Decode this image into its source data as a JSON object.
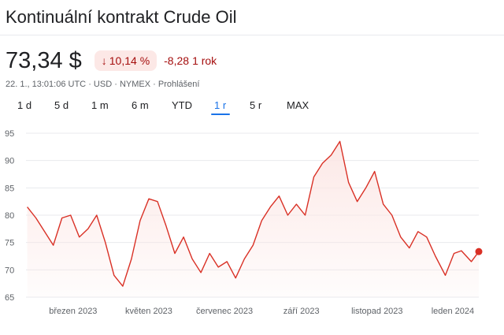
{
  "header": {
    "title": "Kontinuální kontrakt Crude Oil"
  },
  "quote": {
    "price": "73,34 $",
    "percent_change": "10,14 %",
    "change_direction": "down",
    "abs_change": "-8,28",
    "period_label": "1 rok"
  },
  "meta": {
    "timestamp": "22. 1., 13:01:06 UTC",
    "currency": "USD",
    "exchange": "NYMEX",
    "disclaimer": "Prohlášení",
    "separator": "·"
  },
  "tabs": [
    {
      "label": "1 d",
      "active": false
    },
    {
      "label": "5 d",
      "active": false
    },
    {
      "label": "1 m",
      "active": false
    },
    {
      "label": "6 m",
      "active": false
    },
    {
      "label": "YTD",
      "active": false
    },
    {
      "label": "1 r",
      "active": true
    },
    {
      "label": "5 r",
      "active": false
    },
    {
      "label": "MAX",
      "active": false
    }
  ],
  "colors": {
    "line": "#d93025",
    "fill": "#fce8e6",
    "grid": "#e8eaed",
    "accent": "#1a73e8",
    "negative": "#a50e0e"
  },
  "chart_data": {
    "type": "area",
    "x": [
      "2023-01-23",
      "2023-01-30",
      "2023-02-06",
      "2023-02-13",
      "2023-02-20",
      "2023-02-27",
      "2023-03-06",
      "2023-03-13",
      "2023-03-20",
      "2023-03-27",
      "2023-04-03",
      "2023-04-10",
      "2023-04-17",
      "2023-04-24",
      "2023-05-01",
      "2023-05-08",
      "2023-05-15",
      "2023-05-22",
      "2023-05-29",
      "2023-06-05",
      "2023-06-12",
      "2023-06-19",
      "2023-06-26",
      "2023-07-03",
      "2023-07-10",
      "2023-07-17",
      "2023-07-24",
      "2023-07-31",
      "2023-08-07",
      "2023-08-14",
      "2023-08-21",
      "2023-08-28",
      "2023-09-04",
      "2023-09-11",
      "2023-09-18",
      "2023-09-25",
      "2023-10-02",
      "2023-10-09",
      "2023-10-16",
      "2023-10-23",
      "2023-10-30",
      "2023-11-06",
      "2023-11-13",
      "2023-11-20",
      "2023-11-27",
      "2023-12-04",
      "2023-12-11",
      "2023-12-18",
      "2023-12-26",
      "2024-01-02",
      "2024-01-08",
      "2024-01-16",
      "2024-01-22"
    ],
    "y": [
      81.5,
      79.5,
      77.0,
      74.5,
      79.5,
      80.0,
      76.0,
      77.5,
      80.0,
      75.0,
      69.0,
      67.0,
      72.0,
      79.0,
      83.0,
      82.5,
      78.0,
      73.0,
      76.0,
      72.0,
      69.5,
      73.0,
      70.5,
      71.5,
      68.5,
      72.0,
      74.5,
      79.0,
      81.5,
      83.5,
      80.0,
      82.0,
      80.0,
      87.0,
      89.5,
      91.0,
      93.5,
      86.0,
      82.5,
      85.0,
      88.0,
      82.0,
      80.0,
      76.0,
      74.0,
      77.0,
      76.0,
      72.5,
      69.0,
      73.0,
      73.5,
      71.5,
      73.34
    ],
    "x_ticks": [
      {
        "label": "březen 2023",
        "x": "2023-03-01"
      },
      {
        "label": "květen 2023",
        "x": "2023-05-01"
      },
      {
        "label": "červenec 2023",
        "x": "2023-07-01"
      },
      {
        "label": "září 2023",
        "x": "2023-09-01"
      },
      {
        "label": "listopad 2023",
        "x": "2023-11-01"
      },
      {
        "label": "leden 2024",
        "x": "2024-01-01"
      }
    ],
    "y_ticks": [
      65,
      70,
      75,
      80,
      85,
      90,
      95
    ],
    "xlim": [
      "2023-01-22",
      "2024-01-22"
    ],
    "ylim": [
      65,
      95
    ],
    "grid": "horizontal",
    "last_point_marker": true
  }
}
